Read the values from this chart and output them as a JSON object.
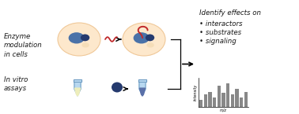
{
  "bg_color": "#ffffff",
  "cell_fill": "#fde8cc",
  "cell_edge": "#f0c898",
  "blue_large": "#4a72a8",
  "blue_dark": "#253a6e",
  "red_accent": "#c0282a",
  "gray_bar": "#888888",
  "text_color": "#1a1a1a",
  "label1": "Enzyme\nmodulation\nin cells",
  "label2": "In vitro\nassays",
  "identify_title": "Identify effects on",
  "bullet1": "• interactors",
  "bullet2": "• substrates",
  "bullet3": "• signaling",
  "xlabel_ms": "m/z",
  "ylabel_ms": "Intensity",
  "ms_bars": [
    0.25,
    0.45,
    0.55,
    0.35,
    0.75,
    0.5,
    0.85,
    0.45,
    0.65,
    0.35,
    0.55
  ],
  "tube_body_light": "#b8d8f0",
  "tube_body_dark": "#4a68a0",
  "tube_liquid_light": "#eeeebb",
  "tube_liquid_dark": "#5a70a8",
  "tube_edge": "#6090b8"
}
